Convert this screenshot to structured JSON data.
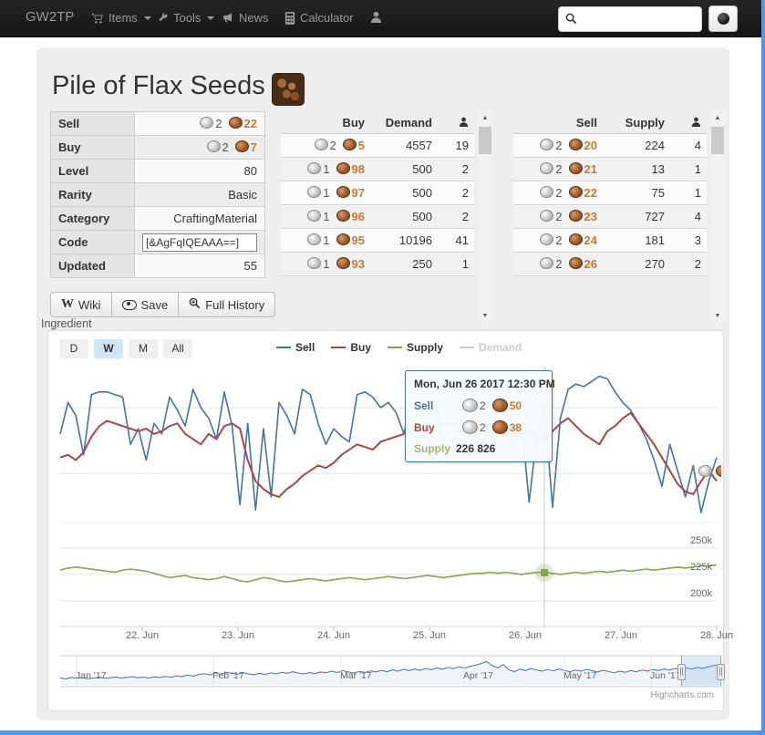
{
  "navbar": {
    "brand": "GW2TP",
    "items": [
      {
        "label": "Items",
        "icon": "cart-icon",
        "caret": true
      },
      {
        "label": "Tools",
        "icon": "wrench-icon",
        "caret": true
      },
      {
        "label": "News",
        "icon": "megaphone-icon",
        "caret": false
      },
      {
        "label": "Calculator",
        "icon": "calculator-icon",
        "caret": false
      },
      {
        "label": "",
        "icon": "user-icon",
        "caret": false
      }
    ],
    "search_value": ""
  },
  "page": {
    "title": "Pile of Flax Seeds"
  },
  "info_table": {
    "rows": [
      {
        "label": "Sell",
        "type": "coins",
        "silver": "2",
        "copper": "22"
      },
      {
        "label": "Buy",
        "type": "coins",
        "silver": "2",
        "copper": "7"
      },
      {
        "label": "Level",
        "type": "text",
        "value": "80"
      },
      {
        "label": "Rarity",
        "type": "text",
        "value": "Basic"
      },
      {
        "label": "Category",
        "type": "text",
        "value": "CraftingMaterial"
      },
      {
        "label": "Code",
        "type": "input",
        "value": "[&AgFqIQEAAA==]"
      },
      {
        "label": "Updated",
        "type": "text",
        "value": "55"
      }
    ]
  },
  "buy_table": {
    "headers": [
      "Buy",
      "Demand"
    ],
    "rows": [
      {
        "silver": "2",
        "copper": "5",
        "qty": "4557",
        "users": "19"
      },
      {
        "silver": "1",
        "copper": "98",
        "qty": "500",
        "users": "2"
      },
      {
        "silver": "1",
        "copper": "97",
        "qty": "500",
        "users": "2"
      },
      {
        "silver": "1",
        "copper": "96",
        "qty": "500",
        "users": "2"
      },
      {
        "silver": "1",
        "copper": "95",
        "qty": "10196",
        "users": "41"
      },
      {
        "silver": "1",
        "copper": "93",
        "qty": "250",
        "users": "1"
      }
    ]
  },
  "sell_table": {
    "headers": [
      "Sell",
      "Supply"
    ],
    "rows": [
      {
        "silver": "2",
        "copper": "20",
        "qty": "224",
        "users": "4"
      },
      {
        "silver": "2",
        "copper": "21",
        "qty": "13",
        "users": "1"
      },
      {
        "silver": "2",
        "copper": "22",
        "qty": "75",
        "users": "1"
      },
      {
        "silver": "2",
        "copper": "23",
        "qty": "727",
        "users": "4"
      },
      {
        "silver": "2",
        "copper": "24",
        "qty": "181",
        "users": "3"
      },
      {
        "silver": "2",
        "copper": "26",
        "qty": "270",
        "users": "2"
      }
    ]
  },
  "actions": {
    "wiki": "Wiki",
    "save": "Save",
    "full_history": "Full History"
  },
  "ingredient_label": "Ingredient",
  "credits": "Highcharts.com",
  "chart_data": {
    "type": "line",
    "ranges": [
      "D",
      "W",
      "M",
      "All"
    ],
    "selected_range": "W",
    "legend": [
      {
        "label": "Sell",
        "color": "#4572a7",
        "disabled": false
      },
      {
        "label": "Buy",
        "color": "#aa4643",
        "disabled": false
      },
      {
        "label": "Supply",
        "color": "#89a54e",
        "disabled": false
      },
      {
        "label": "Demand",
        "color": "#cccccc",
        "disabled": true
      }
    ],
    "tooltip": {
      "date": "Mon, Jun 26 2017 12:30 PM",
      "sell_label": "Sell",
      "sell_silver": "2",
      "sell_copper": "50",
      "buy_label": "Buy",
      "buy_silver": "2",
      "buy_copper": "38",
      "supply_label": "Supply",
      "supply_value": "226 826"
    },
    "x_labels": [
      "22. Jun",
      "23. Jun",
      "24. Jun",
      "25. Jun",
      "26. Jun",
      "27. Jun",
      "28. Jun"
    ],
    "navigator_labels": [
      "Jan '17",
      "Feb '17",
      "Mar '17",
      "Apr '17",
      "May '17",
      "Jun '17"
    ],
    "panes": [
      {
        "name": "price",
        "unit": "copper",
        "ymin": 210.4,
        "ymax": 266,
        "gridlines": [
          250,
          225
        ],
        "gridline_labels": [
          "",
          ""
        ],
        "series": [
          {
            "name": "Sell",
            "color": "#4572a7",
            "width": 1.6,
            "values": [
              240,
              252,
              247,
              232,
              255,
              256,
              256,
              255,
              254,
              236,
              242,
              230,
              244,
              240,
              254,
              249,
              243,
              257,
              250,
              246,
              238,
              256,
              243,
              213,
              244,
              211,
              242,
              216,
              252,
              247,
              240,
              257,
              255,
              244,
              236,
              242,
              239,
              237,
              255,
              256,
              254,
              250,
              252,
              248,
              240,
              256,
              255,
              256,
              254,
              238,
              234,
              244,
              238,
              241,
              245,
              240,
              237,
              234,
              242,
              246,
              214,
              240,
              250,
              212,
              246,
              257,
              259,
              258,
              260,
              262,
              261,
              256,
              252,
              249,
              244,
              238,
              230,
              220,
              236,
              226,
              216,
              228,
              210,
              222,
              231
            ]
          },
          {
            "name": "Buy",
            "color": "#aa4643",
            "width": 2,
            "values": [
              231,
              232,
              230,
              233,
              239,
              243,
              245,
              244,
              243,
              242,
              241,
              242,
              240,
              241,
              243,
              244,
              240,
              238,
              236,
              240,
              238,
              243,
              244,
              242,
              230,
              222,
              219,
              217,
              216,
              219,
              221,
              224,
              226,
              228,
              227,
              229,
              232,
              234,
              236,
              235,
              234,
              237,
              238,
              239,
              240,
              241,
              243,
              242,
              243,
              244,
              243,
              244,
              245,
              246,
              244,
              243,
              241,
              240,
              239,
              240,
              241,
              239,
              238,
              241,
              244,
              246,
              243,
              240,
              238,
              236,
              241,
              243,
              246,
              248,
              244,
              240,
              236,
              231,
              226,
              221,
              218,
              217,
              222,
              226,
              222
            ]
          }
        ]
      },
      {
        "name": "supply",
        "unit": "k",
        "ymin": 181,
        "ymax": 280,
        "gridlines": [
          250,
          225,
          200
        ],
        "gridline_labels": [
          "250k",
          "225k",
          "200k"
        ],
        "series": [
          {
            "name": "Supply",
            "color": "#89a54e",
            "width": 1.6,
            "values": [
              229,
              231,
              232,
              231,
              230,
              229,
              228,
              227,
              229,
              230,
              229,
              228,
              226,
              224,
              222,
              223,
              224,
              222,
              221,
              220,
              221,
              223,
              221,
              219,
              218,
              220,
              222,
              221,
              219,
              218,
              219,
              220,
              221,
              220,
              219,
              220,
              221,
              222,
              221,
              220,
              221,
              222,
              223,
              222,
              221,
              222,
              223,
              224,
              223,
              222,
              223,
              224,
              225,
              226,
              226,
              227,
              226,
              227,
              226,
              225,
              226,
              227,
              226.8,
              226,
              225,
              226,
              227,
              226,
              227,
              228,
              227,
              228,
              229,
              228,
              229,
              230,
              229,
              230,
              231,
              232,
              231,
              232,
              233,
              233,
              234
            ]
          }
        ]
      },
      {
        "name": "navigator",
        "unit": "rel",
        "ymin": 0,
        "ymax": 1,
        "gridlines": [],
        "gridline_labels": [],
        "series": [
          {
            "name": "History",
            "color": "#4572a7",
            "width": 1,
            "values": [
              0.25,
              0.22,
              0.27,
              0.24,
              0.26,
              0.23,
              0.25,
              0.28,
              0.24,
              0.26,
              0.29,
              0.25,
              0.27,
              0.3,
              0.26,
              0.28,
              0.25,
              0.29,
              0.27,
              0.31,
              0.28,
              0.33,
              0.3,
              0.36,
              0.32,
              0.38,
              0.41,
              0.36,
              0.44,
              0.39,
              0.46,
              0.42,
              0.39,
              0.44,
              0.4,
              0.37,
              0.42,
              0.38,
              0.44,
              0.4,
              0.46,
              0.42,
              0.48,
              0.43,
              0.4,
              0.45,
              0.41,
              0.47,
              0.44,
              0.5,
              0.45,
              0.52,
              0.47,
              0.43,
              0.49,
              0.45,
              0.51,
              0.47,
              0.53,
              0.48,
              0.55,
              0.5,
              0.57,
              0.52,
              0.58,
              0.53,
              0.6,
              0.55,
              0.62,
              0.57,
              0.64,
              0.59,
              0.66,
              0.61,
              0.68,
              0.72,
              0.78,
              0.85,
              0.7,
              0.62,
              0.74,
              0.55,
              0.48,
              0.58,
              0.52,
              0.6,
              0.54,
              0.5,
              0.56,
              0.51,
              0.58,
              0.53,
              0.48,
              0.54,
              0.5,
              0.56,
              0.52,
              0.47,
              0.53,
              0.49,
              0.44,
              0.5,
              0.46,
              0.52,
              0.48,
              0.54,
              0.5,
              0.56,
              0.52,
              0.58,
              0.54,
              0.6,
              0.56,
              0.62,
              0.58,
              0.64,
              0.6,
              0.66,
              0.7,
              0.74
            ]
          }
        ]
      }
    ]
  }
}
